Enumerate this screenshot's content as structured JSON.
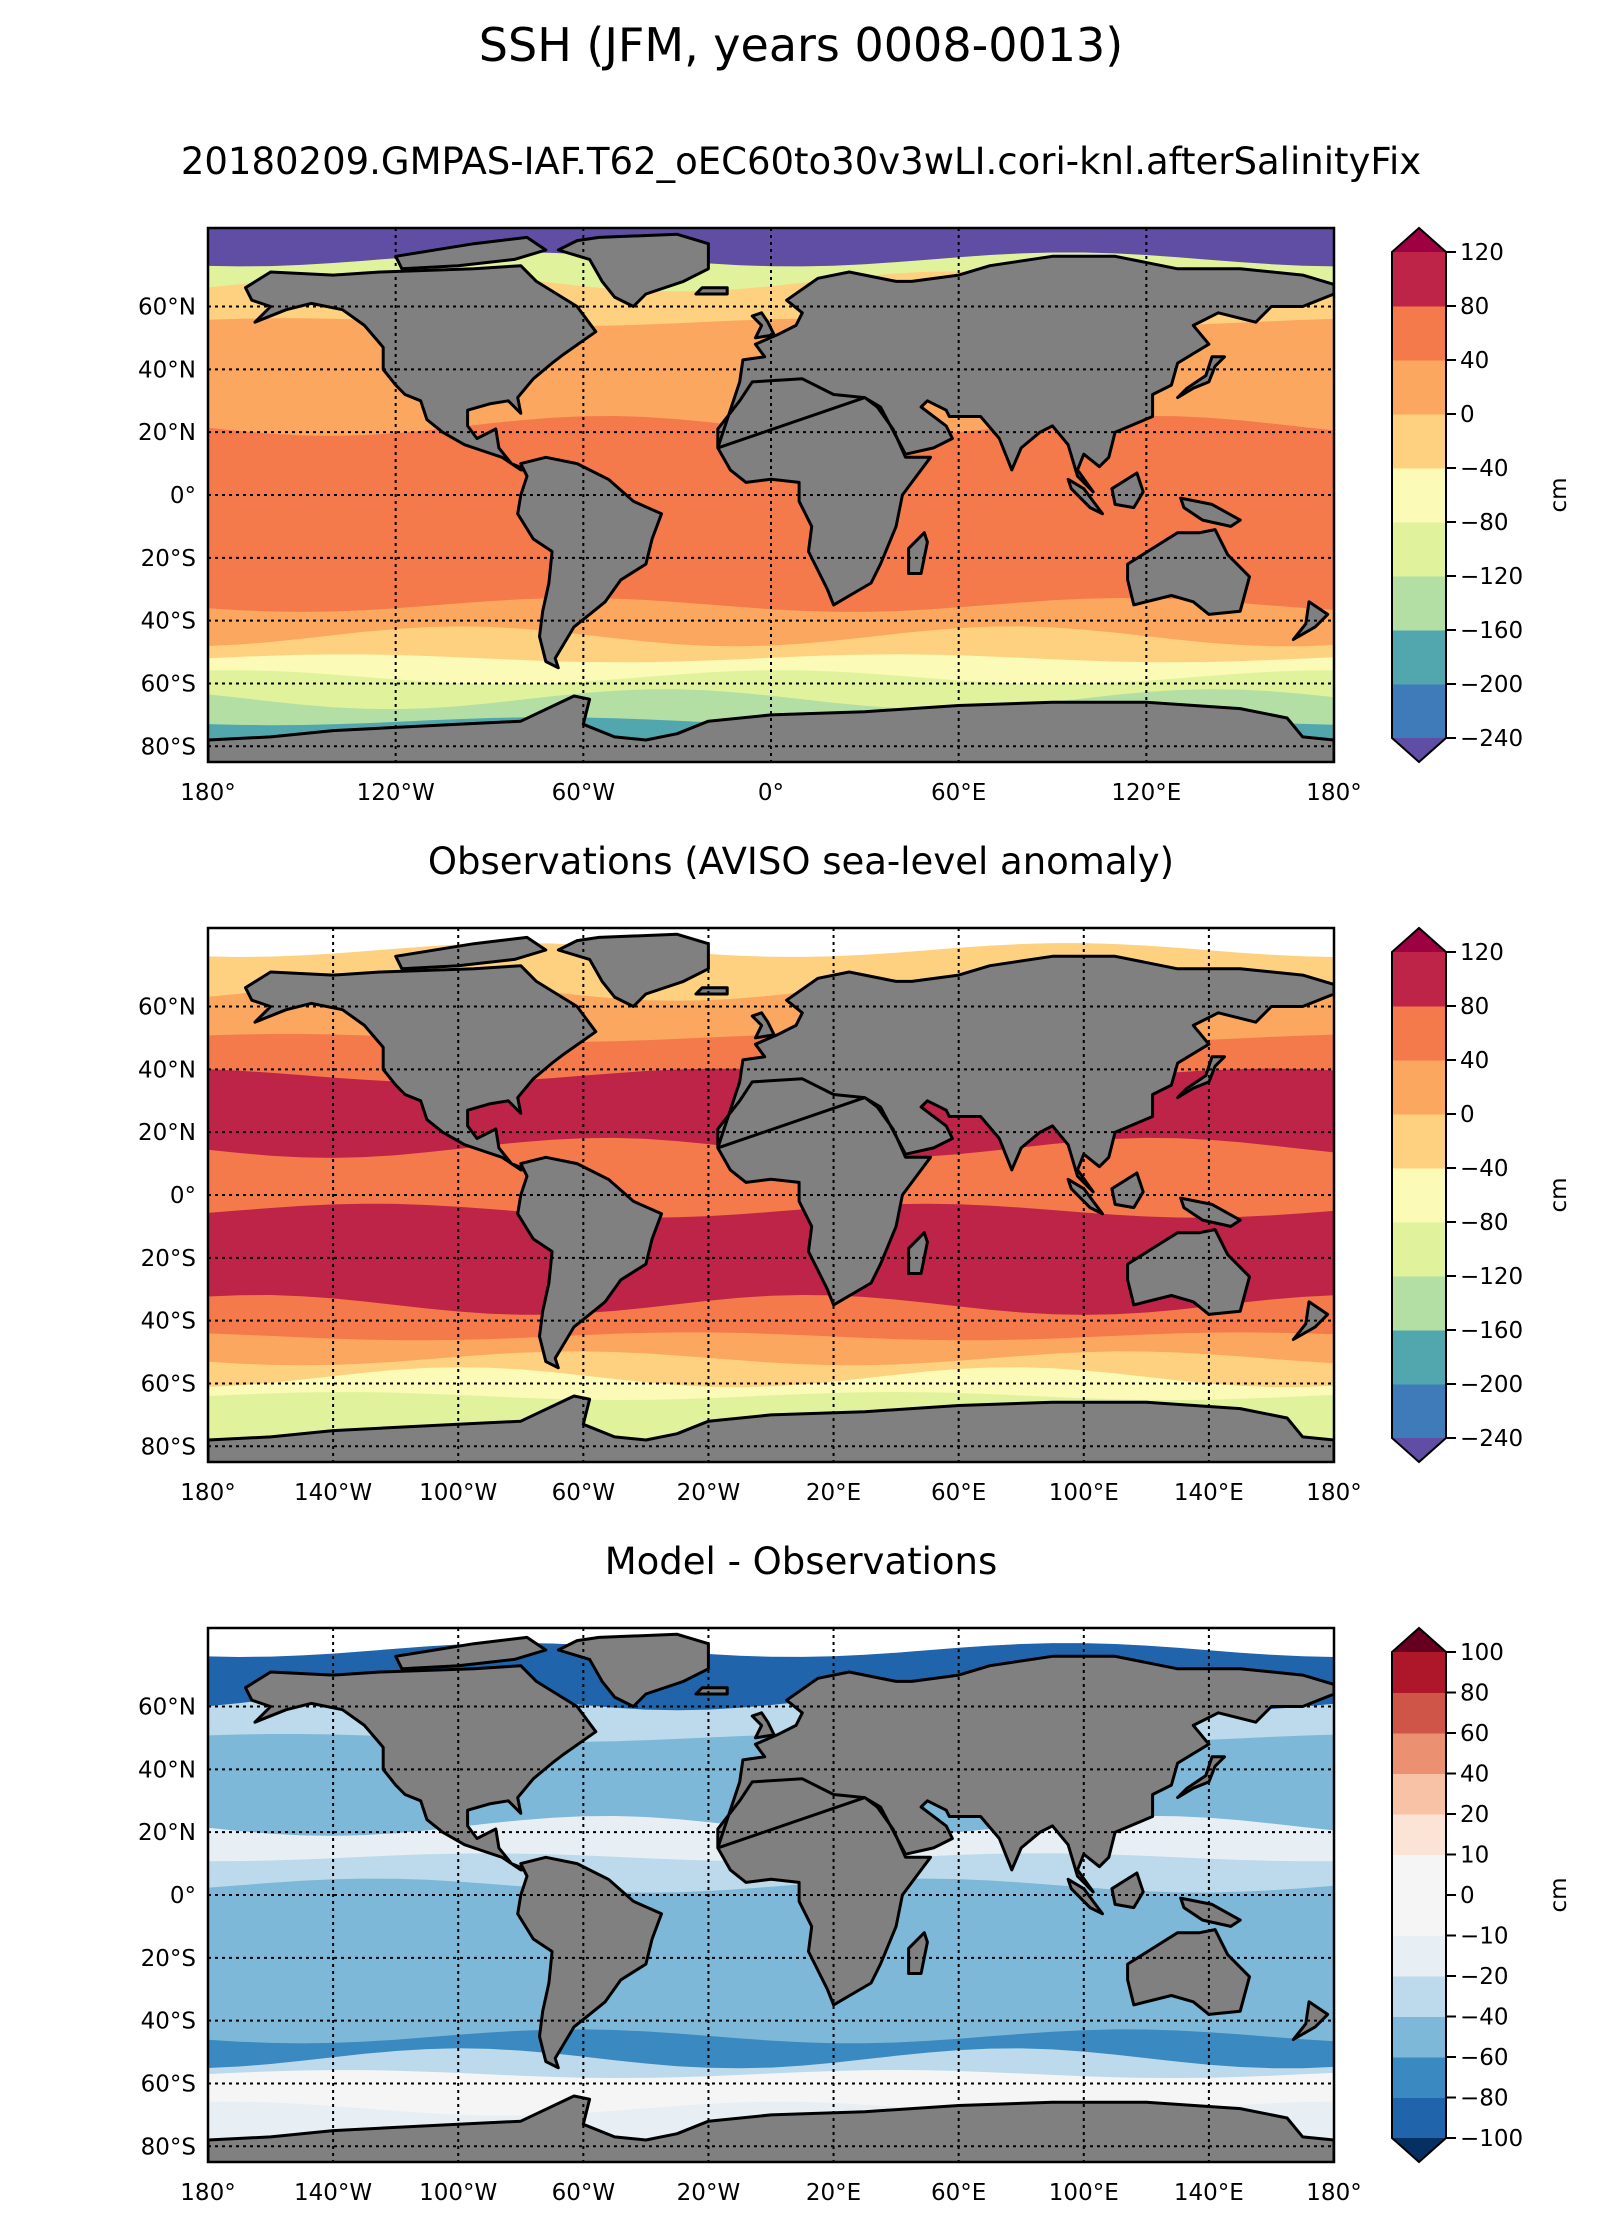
{
  "suptitle": "SSH (JFM, years 0008-0013)",
  "colors": {
    "land": "#808080",
    "coast": "#000000",
    "missing": "#ffffff"
  },
  "chart_data": [
    {
      "type": "heatmap",
      "title": "20180209.GMPAS-IAF.T62_oEC60to30v3wLI.cori-knl.afterSalinityFix",
      "projection": "PlateCarree",
      "xlim": [
        -180,
        180
      ],
      "ylim": [
        -85,
        85
      ],
      "grid": true,
      "xticks": [
        -180,
        -120,
        -60,
        0,
        60,
        120,
        180
      ],
      "xtick_labels": [
        "180°",
        "120°W",
        "60°W",
        "0°",
        "60°E",
        "120°E",
        "180°"
      ],
      "yticks": [
        60,
        40,
        20,
        0,
        -20,
        -40,
        -60,
        -80
      ],
      "ytick_labels": [
        "60°N",
        "40°N",
        "20°N",
        "0°",
        "20°S",
        "40°S",
        "60°S",
        "80°S"
      ],
      "colorbar": {
        "label": "cm",
        "levels": [
          -240,
          -200,
          -160,
          -120,
          -80,
          -40,
          0,
          40,
          80,
          120
        ],
        "tick_labels": [
          "−240",
          "−200",
          "−160",
          "−120",
          "−80",
          "−40",
          "0",
          "40",
          "80",
          "120"
        ],
        "colors": [
          "#3f7ab9",
          "#52a7ae",
          "#b3dfa4",
          "#e0f39c",
          "#fbfab7",
          "#fed181",
          "#fba75f",
          "#f47a4b",
          "#be2448"
        ],
        "under_color": "#5f4ea3",
        "over_color": "#9e0142",
        "extend": "both"
      },
      "zonal_bands": [
        {
          "lat": [
            75,
            85
          ],
          "value": -260
        },
        {
          "lat": [
            68,
            75
          ],
          "value": -100
        },
        {
          "lat": [
            55,
            68
          ],
          "value": -30
        },
        {
          "lat": [
            35,
            55
          ],
          "value": 10
        },
        {
          "lat": [
            22,
            35
          ],
          "value": 30
        },
        {
          "lat": [
            10,
            22
          ],
          "value": 70
        },
        {
          "lat": [
            3,
            10
          ],
          "value": 50
        },
        {
          "lat": [
            -3,
            3
          ],
          "value": 40
        },
        {
          "lat": [
            -18,
            -3
          ],
          "value": 70
        },
        {
          "lat": [
            -35,
            -18
          ],
          "value": 45
        },
        {
          "lat": [
            -45,
            -35
          ],
          "value": 10
        },
        {
          "lat": [
            -52,
            -45
          ],
          "value": -20
        },
        {
          "lat": [
            -58,
            -52
          ],
          "value": -60
        },
        {
          "lat": [
            -65,
            -58
          ],
          "value": -100
        },
        {
          "lat": [
            -72,
            -65
          ],
          "value": -130
        },
        {
          "lat": [
            -85,
            -72
          ],
          "value": -170
        }
      ]
    },
    {
      "type": "heatmap",
      "title": "Observations (AVISO sea-level anomaly)",
      "projection": "PlateCarree",
      "xlim": [
        -180,
        180
      ],
      "ylim": [
        -85,
        85
      ],
      "grid": true,
      "xticks": [
        -180,
        -140,
        -100,
        -60,
        -20,
        20,
        60,
        100,
        140,
        180
      ],
      "xtick_labels": [
        "180°",
        "140°W",
        "100°W",
        "60°W",
        "20°W",
        "20°E",
        "60°E",
        "100°E",
        "140°E",
        "180°"
      ],
      "yticks": [
        60,
        40,
        20,
        0,
        -20,
        -40,
        -60,
        -80
      ],
      "ytick_labels": [
        "60°N",
        "40°N",
        "20°N",
        "0°",
        "20°S",
        "40°S",
        "60°S",
        "80°S"
      ],
      "colorbar": {
        "label": "cm",
        "levels": [
          -240,
          -200,
          -160,
          -120,
          -80,
          -40,
          0,
          40,
          80,
          120
        ],
        "tick_labels": [
          "−240",
          "−200",
          "−160",
          "−120",
          "−80",
          "−40",
          "0",
          "40",
          "80",
          "120"
        ],
        "colors": [
          "#3f7ab9",
          "#52a7ae",
          "#b3dfa4",
          "#e0f39c",
          "#fbfab7",
          "#fed181",
          "#fba75f",
          "#f47a4b",
          "#be2448"
        ],
        "under_color": "#5f4ea3",
        "over_color": "#9e0142",
        "extend": "both"
      },
      "zonal_bands": [
        {
          "lat": [
            78,
            85
          ],
          "value": null
        },
        {
          "lat": [
            65,
            78
          ],
          "value": -30
        },
        {
          "lat": [
            50,
            65
          ],
          "value": 20
        },
        {
          "lat": [
            38,
            50
          ],
          "value": 50
        },
        {
          "lat": [
            15,
            38
          ],
          "value": 90
        },
        {
          "lat": [
            5,
            15
          ],
          "value": 70
        },
        {
          "lat": [
            -5,
            5
          ],
          "value": 60
        },
        {
          "lat": [
            -35,
            -5
          ],
          "value": 85
        },
        {
          "lat": [
            -45,
            -35
          ],
          "value": 50
        },
        {
          "lat": [
            -52,
            -45
          ],
          "value": 10
        },
        {
          "lat": [
            -58,
            -52
          ],
          "value": -30
        },
        {
          "lat": [
            -64,
            -58
          ],
          "value": -70
        },
        {
          "lat": [
            -85,
            -64
          ],
          "value": -110
        }
      ]
    },
    {
      "type": "heatmap",
      "title": "Model - Observations",
      "projection": "PlateCarree",
      "xlim": [
        -180,
        180
      ],
      "ylim": [
        -85,
        85
      ],
      "grid": true,
      "xticks": [
        -180,
        -140,
        -100,
        -60,
        -20,
        20,
        60,
        100,
        140,
        180
      ],
      "xtick_labels": [
        "180°",
        "140°W",
        "100°W",
        "60°W",
        "20°W",
        "20°E",
        "60°E",
        "100°E",
        "140°E",
        "180°"
      ],
      "yticks": [
        60,
        40,
        20,
        0,
        -20,
        -40,
        -60,
        -80
      ],
      "ytick_labels": [
        "60°N",
        "40°N",
        "20°N",
        "0°",
        "20°S",
        "40°S",
        "60°S",
        "80°S"
      ],
      "colorbar": {
        "label": "cm",
        "levels": [
          -100,
          -80,
          -60,
          -40,
          -20,
          -10,
          0,
          10,
          20,
          40,
          60,
          80,
          100
        ],
        "tick_labels": [
          "−100",
          "−80",
          "−60",
          "−40",
          "−20",
          "−10",
          "0",
          "10",
          "20",
          "40",
          "60",
          "80",
          "100"
        ],
        "colors": [
          "#2065ab",
          "#3a89c0",
          "#7db8d8",
          "#bcdaeb",
          "#e7eff5",
          "#f5f5f5",
          "#f5f5f5",
          "#fbe4d6",
          "#f8c2a6",
          "#eb9172",
          "#cf5548",
          "#ae1729"
        ],
        "under_color": "#053061",
        "over_color": "#67001f",
        "extend": "both"
      },
      "zonal_bands": [
        {
          "lat": [
            78,
            85
          ],
          "value": null
        },
        {
          "lat": [
            62,
            78
          ],
          "value": -90
        },
        {
          "lat": [
            50,
            62
          ],
          "value": -30
        },
        {
          "lat": [
            35,
            50
          ],
          "value": -50
        },
        {
          "lat": [
            22,
            35
          ],
          "value": -50
        },
        {
          "lat": [
            12,
            22
          ],
          "value": -15
        },
        {
          "lat": [
            3,
            12
          ],
          "value": -30
        },
        {
          "lat": [
            -3,
            3
          ],
          "value": -45
        },
        {
          "lat": [
            -30,
            -3
          ],
          "value": -50
        },
        {
          "lat": [
            -45,
            -30
          ],
          "value": -55
        },
        {
          "lat": [
            -52,
            -45
          ],
          "value": -70
        },
        {
          "lat": [
            -57,
            -52
          ],
          "value": -25
        },
        {
          "lat": [
            -68,
            -57
          ],
          "value": 5
        },
        {
          "lat": [
            -85,
            -68
          ],
          "value": -15
        }
      ]
    }
  ]
}
